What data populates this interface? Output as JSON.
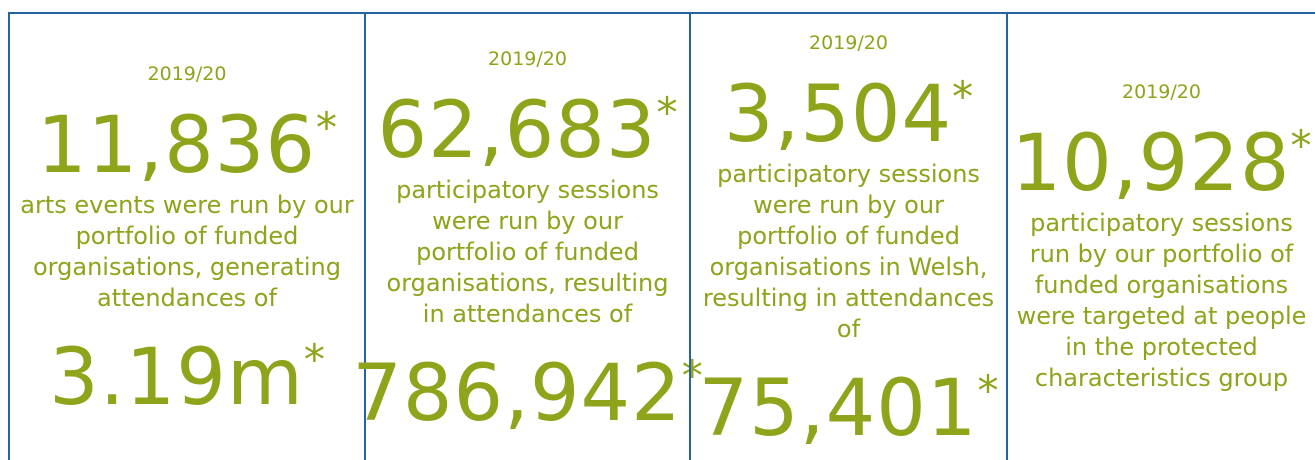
{
  "panels": [
    {
      "year": "2019/20",
      "figure": "11,836",
      "mark": "*",
      "lines": [
        "arts events were run by our",
        "portfolio of funded",
        "organisations, generating",
        "attendances of"
      ],
      "second_figure": "3.19m",
      "second_mark": "*"
    },
    {
      "year": "2019/20",
      "figure": "62,683",
      "mark": "*",
      "lines": [
        "participatory sessions",
        "were run by our",
        "portfolio of funded",
        "organisations, resulting",
        "in attendances of"
      ],
      "second_figure": "786,942",
      "second_mark": "*"
    },
    {
      "year": "2019/20",
      "figure": "3,504",
      "mark": "*",
      "lines": [
        "participatory sessions",
        "were run by our",
        "portfolio of funded",
        "organisations in Welsh,",
        "resulting in attendances",
        "of"
      ],
      "second_figure": "75,401",
      "second_mark": "*"
    },
    {
      "year": "2019/20",
      "figure": "10,928",
      "mark": "*",
      "lines": [
        "participatory sessions",
        "run by our portfolio of",
        "funded organisations",
        "were targeted at people",
        "in the protected",
        "characteristics group"
      ]
    }
  ]
}
